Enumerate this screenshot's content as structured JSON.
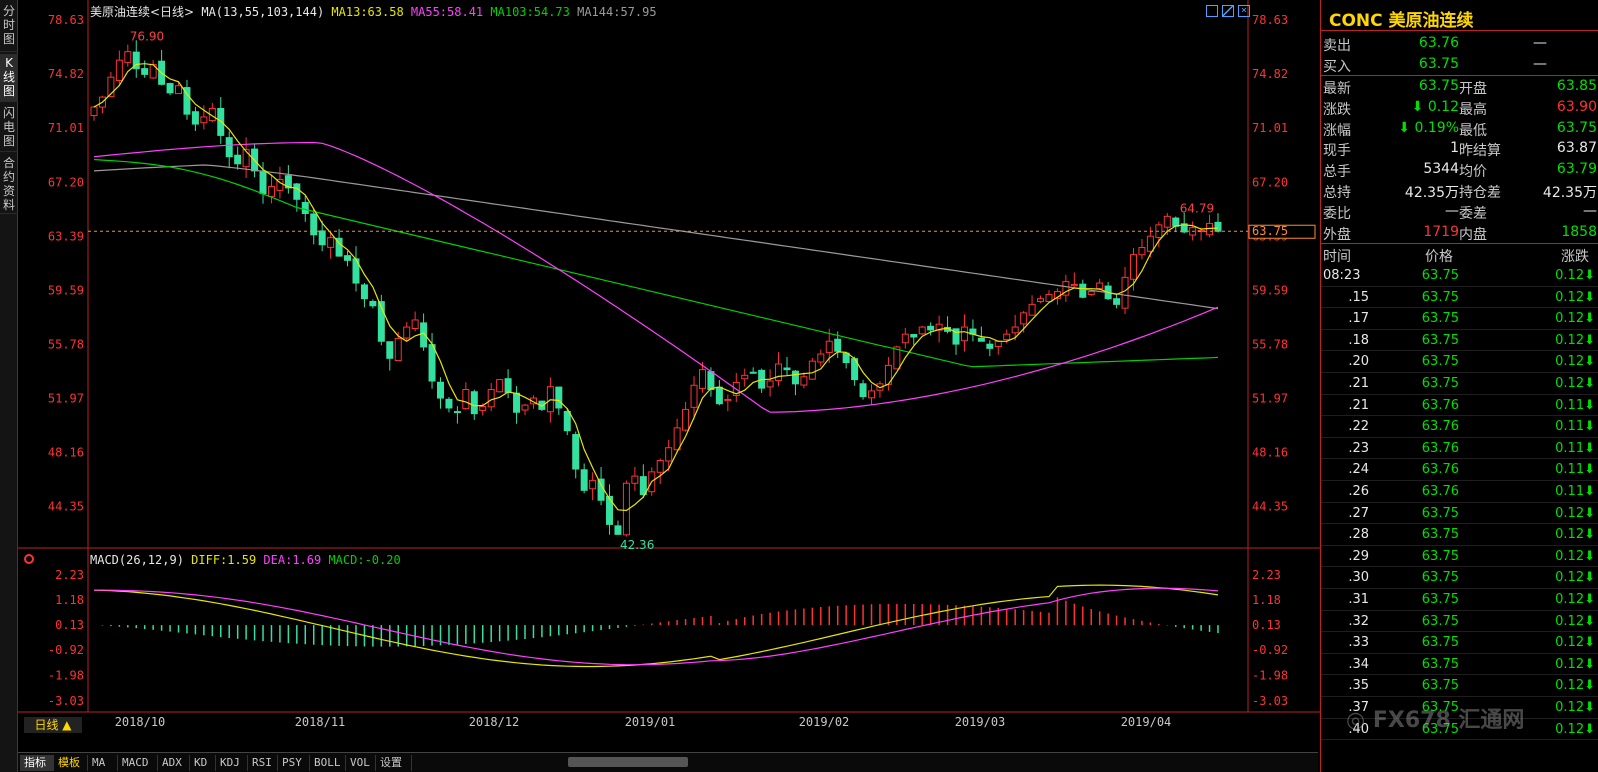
{
  "left_tabs": [
    "分时图",
    "K线图",
    "闪电图",
    "合约资料"
  ],
  "main_header": {
    "title": "美原油连续<日线>",
    "ma_label": "MA(13,55,103,144)",
    "ma13": "MA13:63.58",
    "ma55": "MA55:58.41",
    "ma103": "MA103:54.73",
    "ma144": "MA144:57.95"
  },
  "price_ticks": [
    "78.63",
    "74.82",
    "71.01",
    "67.20",
    "63.39",
    "59.59",
    "55.78",
    "51.97",
    "48.16",
    "44.35"
  ],
  "current_price_tag": "63.75",
  "annotations": {
    "high": "76.90",
    "low": "42.36",
    "recent_high": "64.79"
  },
  "macd_header": {
    "label": "MACD(26,12,9)",
    "diff": "DIFF:1.59",
    "dea": "DEA:1.69",
    "macd": "MACD:-0.20"
  },
  "macd_ticks": [
    "2.23",
    "1.18",
    "0.13",
    "-0.92",
    "-1.98",
    "-3.03"
  ],
  "date_ticks": [
    "2018/10",
    "2018/11",
    "2018/12",
    "2019/01",
    "2019/02",
    "2019/03",
    "2019/04"
  ],
  "period_button": "日线 ▲",
  "bottom_tabs": [
    "指标",
    "模板",
    "MA",
    "MACD",
    "ADX",
    "KD",
    "KDJ",
    "RSI",
    "PSY",
    "BOLL",
    "VOL",
    "设置"
  ],
  "colors": {
    "up": "#ff3232",
    "down": "#33e0a0",
    "ma13": "#e6e600",
    "ma55": "#ff40ff",
    "ma103": "#00d000",
    "ma144": "#9a9a9a",
    "axis_red": "#ff3232",
    "accent": "#b22222"
  },
  "chart_data": {
    "type": "candlestick",
    "title": "美原油连续<日线>",
    "ylim": [
      42.0,
      78.63
    ],
    "x_ticks": [
      "2018/10",
      "2018/11",
      "2018/12",
      "2019/01",
      "2019/02",
      "2019/03",
      "2019/04"
    ],
    "series": [
      {
        "name": "MA13",
        "value": "63.58"
      },
      {
        "name": "MA55",
        "value": "58.41"
      },
      {
        "name": "MA103",
        "value": "54.73"
      },
      {
        "name": "MA144",
        "value": "57.95"
      }
    ],
    "closes": [
      72.5,
      73.2,
      74.6,
      75.8,
      76.4,
      75.2,
      74.8,
      75.5,
      74.1,
      73.5,
      74.0,
      72.0,
      71.3,
      71.8,
      72.4,
      70.5,
      69.0,
      68.5,
      69.5,
      68.0,
      66.4,
      66.9,
      67.4,
      66.8,
      66.0,
      65.0,
      63.5,
      62.8,
      63.3,
      62.0,
      61.7,
      60.1,
      59.0,
      58.5,
      56.0,
      54.8,
      56.2,
      57.0,
      57.5,
      55.6,
      53.2,
      52.0,
      51.3,
      51.0,
      52.6,
      50.9,
      51.4,
      52.6,
      53.3,
      52.4,
      51.0,
      51.5,
      52.0,
      51.2,
      52.8,
      51.3,
      49.7,
      47.0,
      45.5,
      46.2,
      44.8,
      43.1,
      42.4,
      46.0,
      46.5,
      45.2,
      46.8,
      47.6,
      48.5,
      49.9,
      51.2,
      52.9,
      54.0,
      52.6,
      51.6,
      51.9,
      53.1,
      53.6,
      53.8,
      52.7,
      53.2,
      54.4,
      54.0,
      53.0,
      53.5,
      54.6,
      55.1,
      56.0,
      55.3,
      54.5,
      53.3,
      52.1,
      52.5,
      53.0,
      54.3,
      55.6,
      56.5,
      56.3,
      57.0,
      56.8,
      57.2,
      56.7,
      55.8,
      57.0,
      56.5,
      56.0,
      55.5,
      56.0,
      56.5,
      57.0,
      58.0,
      58.6,
      59.0,
      59.3,
      59.5,
      60.2,
      60.0,
      59.1,
      59.5,
      60.1,
      59.0,
      58.6,
      60.5,
      62.1,
      62.6,
      63.4,
      64.2,
      64.8,
      64.1,
      63.7,
      64.0,
      63.8,
      64.3,
      63.75
    ],
    "ma_values": {
      "MA13": 63.58,
      "MA55": 58.41,
      "MA103": 54.73,
      "MA144": 57.95
    },
    "macd": {
      "diff": 1.59,
      "dea": 1.69,
      "macd": -0.2,
      "ylim": [
        -3.5,
        2.6
      ]
    }
  },
  "right_panel": {
    "title": "CONC 美原油连续",
    "sell": {
      "label": "卖出",
      "price": "63.76",
      "vol": "—"
    },
    "buy": {
      "label": "买入",
      "price": "63.75",
      "vol": "—"
    },
    "quotes": [
      {
        "l1": "最新",
        "v1": "63.75",
        "c1": "grn",
        "l2": "开盘",
        "v2": "63.85",
        "c2": "grn"
      },
      {
        "l1": "涨跌",
        "v1": "⬇ 0.12",
        "c1": "grn",
        "l2": "最高",
        "v2": "63.90",
        "c2": "red"
      },
      {
        "l1": "涨幅",
        "v1": "⬇ 0.19%",
        "c1": "grn",
        "l2": "最低",
        "v2": "63.75",
        "c2": "grn"
      },
      {
        "l1": "现手",
        "v1": "1",
        "c1": "wht",
        "l2": "昨结算",
        "v2": "63.87",
        "c2": "wht"
      },
      {
        "l1": "总手",
        "v1": "5344",
        "c1": "wht",
        "l2": "均价",
        "v2": "63.79",
        "c2": "grn"
      },
      {
        "l1": "总持",
        "v1": "42.35万",
        "c1": "wht",
        "l2": "持仓差",
        "v2": "42.35万",
        "c2": "wht"
      },
      {
        "l1": "委比",
        "v1": "—",
        "c1": "wht",
        "l2": "委差",
        "v2": "—",
        "c2": "wht"
      },
      {
        "l1": "外盘",
        "v1": "1719",
        "c1": "red",
        "l2": "内盘",
        "v2": "1858",
        "c2": "grn"
      }
    ],
    "ticks_header": {
      "time": "时间",
      "price": "价格",
      "change": "涨跌"
    },
    "ticks": [
      {
        "t": "08:23",
        "p": "63.75",
        "c": "0.12⬇"
      },
      {
        "t": ".15",
        "p": "63.75",
        "c": "0.12⬇"
      },
      {
        "t": ".17",
        "p": "63.75",
        "c": "0.12⬇"
      },
      {
        "t": ".18",
        "p": "63.75",
        "c": "0.12⬇"
      },
      {
        "t": ".20",
        "p": "63.75",
        "c": "0.12⬇"
      },
      {
        "t": ".21",
        "p": "63.75",
        "c": "0.12⬇"
      },
      {
        "t": ".21",
        "p": "63.76",
        "c": "0.11⬇"
      },
      {
        "t": ".22",
        "p": "63.76",
        "c": "0.11⬇"
      },
      {
        "t": ".23",
        "p": "63.76",
        "c": "0.11⬇"
      },
      {
        "t": ".24",
        "p": "63.76",
        "c": "0.11⬇"
      },
      {
        "t": ".26",
        "p": "63.76",
        "c": "0.11⬇"
      },
      {
        "t": ".27",
        "p": "63.75",
        "c": "0.12⬇"
      },
      {
        "t": ".28",
        "p": "63.75",
        "c": "0.12⬇"
      },
      {
        "t": ".29",
        "p": "63.75",
        "c": "0.12⬇"
      },
      {
        "t": ".30",
        "p": "63.75",
        "c": "0.12⬇"
      },
      {
        "t": ".31",
        "p": "63.75",
        "c": "0.12⬇"
      },
      {
        "t": ".32",
        "p": "63.75",
        "c": "0.12⬇"
      },
      {
        "t": ".33",
        "p": "63.75",
        "c": "0.12⬇"
      },
      {
        "t": ".34",
        "p": "63.75",
        "c": "0.12⬇"
      },
      {
        "t": ".35",
        "p": "63.75",
        "c": "0.12⬇"
      },
      {
        "t": ".37",
        "p": "63.75",
        "c": "0.12⬇"
      },
      {
        "t": ".40",
        "p": "63.75",
        "c": "0.12⬇"
      }
    ]
  },
  "watermark": "FX678 汇通网"
}
